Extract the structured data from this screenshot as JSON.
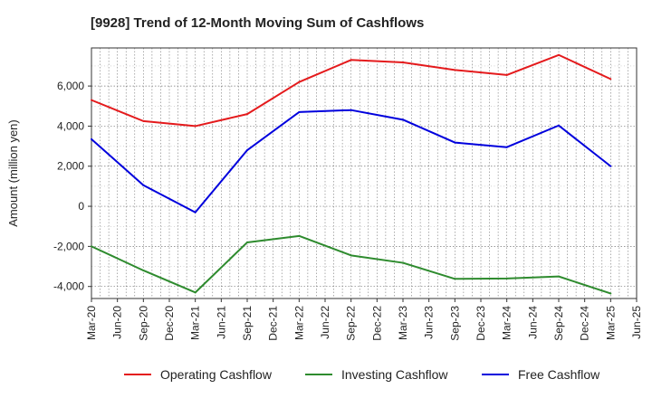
{
  "chart_data": {
    "type": "line",
    "title": "[9928]  Trend of 12-Month Moving Sum of Cashflows",
    "xlabel": "",
    "ylabel": "Amount (million yen)",
    "x_ticks": [
      "Mar-20",
      "Jun-20",
      "Sep-20",
      "Dec-20",
      "Mar-21",
      "Jun-21",
      "Sep-21",
      "Dec-21",
      "Mar-22",
      "Jun-22",
      "Sep-22",
      "Dec-22",
      "Mar-23",
      "Jun-23",
      "Sep-23",
      "Dec-23",
      "Mar-24",
      "Jun-24",
      "Sep-24",
      "Dec-24",
      "Mar-25",
      "Jun-25"
    ],
    "y_ticks": [
      -4000,
      -2000,
      0,
      2000,
      4000,
      6000
    ],
    "y_tick_labels": [
      "-4,000",
      "-2,000",
      "0",
      "2,000",
      "4,000",
      "6,000"
    ],
    "ylim": [
      -4600,
      7900
    ],
    "grid": true,
    "legend_position": "bottom",
    "x": [
      "Mar-20",
      "Sep-20",
      "Mar-21",
      "Sep-21",
      "Mar-22",
      "Sep-22",
      "Mar-23",
      "Sep-23",
      "Mar-24",
      "Sep-24",
      "Mar-25"
    ],
    "series": [
      {
        "name": "Operating Cashflow",
        "color": "#e41a1c",
        "values": [
          5300,
          4250,
          4000,
          4600,
          6200,
          7300,
          7180,
          6800,
          6550,
          7550,
          6350
        ]
      },
      {
        "name": "Investing Cashflow",
        "color": "#2e8b2e",
        "values": [
          -2000,
          -3200,
          -4300,
          -1800,
          -1480,
          -2450,
          -2820,
          -3620,
          -3600,
          -3500,
          -4350
        ]
      },
      {
        "name": "Free Cashflow",
        "color": "#0000dd",
        "values": [
          3350,
          1050,
          -300,
          2800,
          4700,
          4800,
          4320,
          3180,
          2950,
          4030,
          2000
        ]
      }
    ]
  }
}
